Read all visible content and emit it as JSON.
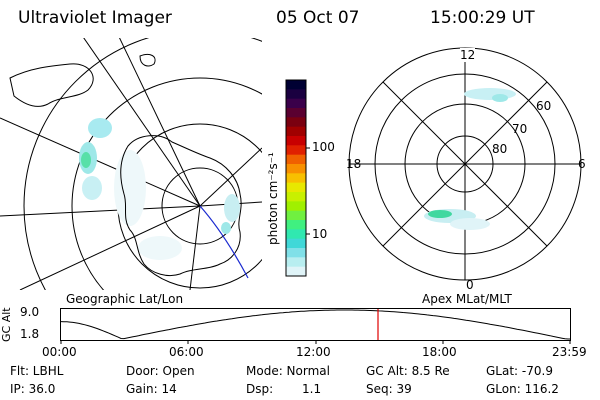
{
  "header": {
    "title": "Ultraviolet Imager",
    "date": "05 Oct 07",
    "time": "15:00:29 UT"
  },
  "geo_panel": {
    "label": "Geographic Lat/Lon"
  },
  "apex_panel": {
    "label": "Apex MLat/MLT",
    "mlt_labels": {
      "top": "12",
      "left": "18",
      "right": "6",
      "bottom": "0"
    },
    "lat_labels": [
      "60",
      "70",
      "80"
    ]
  },
  "colorbar": {
    "unit": "photon cm⁻²s⁻¹",
    "ticks": [
      "100",
      "10"
    ],
    "colors": [
      "#000033",
      "#1a0040",
      "#3a004a",
      "#5a0030",
      "#7a0010",
      "#a00000",
      "#c80000",
      "#e02000",
      "#f06000",
      "#f89000",
      "#f8c000",
      "#e8e800",
      "#c8f000",
      "#a0f000",
      "#70f040",
      "#40f080",
      "#30e8b0",
      "#40d8d8",
      "#80e0e8",
      "#b8eef0",
      "#e0f4f8"
    ]
  },
  "timeline": {
    "ylabel": "GC Alt",
    "y_top": "9.0",
    "y_bottom": "1.8",
    "ticks": [
      "00:00",
      "06:00",
      "12:00",
      "18:00",
      "23:59"
    ],
    "current_marker_color": "#e00000"
  },
  "footer": {
    "flt": "Flt: LBHL",
    "ip": "IP: 36.0",
    "door": "Door: Open",
    "gain": "Gain: 14",
    "mode": "Mode: Normal",
    "dsp_label": "Dsp:",
    "dsp_value": "1.1",
    "gcalt": "GC Alt: 8.5 Re",
    "seq": "Seq: 39",
    "glat": "GLat: -70.9",
    "glon": "GLon: 116.2"
  }
}
